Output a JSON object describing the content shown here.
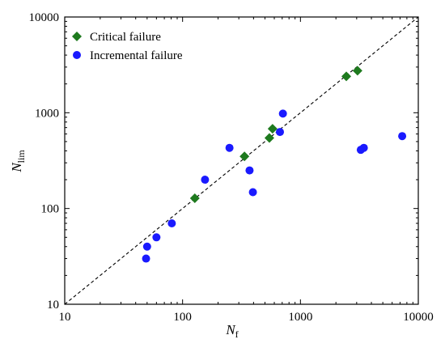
{
  "chart_data": {
    "type": "scatter",
    "xscale": "log",
    "yscale": "log",
    "xlim": [
      10,
      10000
    ],
    "ylim": [
      10,
      10000
    ],
    "xticks": [
      "10",
      "100",
      "1000",
      "10000"
    ],
    "yticks": [
      "10",
      "100",
      "1000",
      "10000"
    ],
    "xlabel": {
      "main": "N",
      "sub": "f"
    },
    "ylabel": {
      "main": "N",
      "sub": "lim"
    },
    "reference_line": {
      "style": "dashed",
      "from": [
        10,
        10
      ],
      "to": [
        10000,
        10000
      ]
    },
    "legend_position": "top-left",
    "series": [
      {
        "name": "Critical failure",
        "marker": "diamond",
        "color": "#1e7a1e",
        "points": [
          [
            127,
            128
          ],
          [
            335,
            350
          ],
          [
            545,
            545
          ],
          [
            580,
            680
          ],
          [
            2450,
            2400
          ],
          [
            3050,
            2750
          ]
        ]
      },
      {
        "name": "Incremental failure",
        "marker": "circle",
        "color": "#1a1aff",
        "points": [
          [
            49,
            30
          ],
          [
            50,
            40
          ],
          [
            60,
            50
          ],
          [
            81,
            70
          ],
          [
            155,
            200
          ],
          [
            250,
            430
          ],
          [
            370,
            250
          ],
          [
            395,
            148
          ],
          [
            670,
            630
          ],
          [
            710,
            980
          ],
          [
            3250,
            410
          ],
          [
            3450,
            430
          ],
          [
            7300,
            570
          ]
        ]
      }
    ]
  }
}
